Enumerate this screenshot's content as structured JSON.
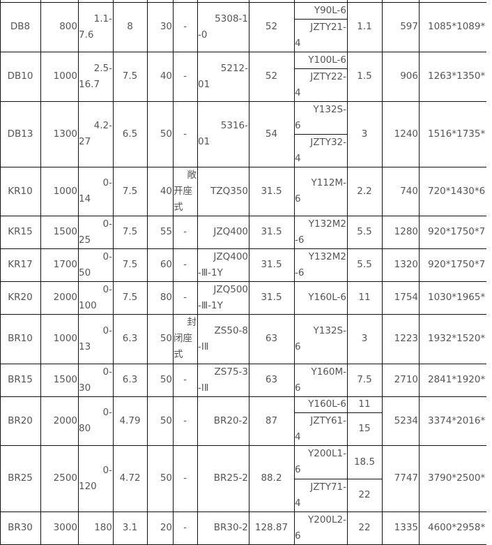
{
  "table": {
    "rows": [
      {
        "cells": [
          [
            "DB8"
          ],
          [
            "800"
          ],
          [
            "1.1-",
            "7.6"
          ],
          [
            "8"
          ],
          [
            "30"
          ],
          [
            "-"
          ],
          [
            "5308-1",
            "-0"
          ],
          [
            "52"
          ],
          {
            "split": [
              [
                "Y90L-6"
              ],
              [
                "JZTY21-",
                "4"
              ]
            ]
          },
          [
            "1.1"
          ],
          [
            "597"
          ],
          [
            "1085*1089*"
          ]
        ]
      },
      {
        "cells": [
          [
            "DB10"
          ],
          [
            "1000"
          ],
          [
            "2.5-",
            "16.7"
          ],
          [
            "7.5"
          ],
          [
            "40"
          ],
          [
            "-"
          ],
          [
            "5212-",
            "01"
          ],
          [
            "52"
          ],
          {
            "split": [
              [
                "Y100L-6"
              ],
              [
                "JZTY22-",
                "4"
              ]
            ]
          },
          [
            "1.5"
          ],
          [
            "906"
          ],
          [
            "1263*1350*"
          ]
        ]
      },
      {
        "cells": [
          [
            "DB13"
          ],
          [
            "1300"
          ],
          [
            "4.2-",
            "27"
          ],
          [
            "6.5"
          ],
          [
            "50"
          ],
          [
            "-"
          ],
          [
            "5316-",
            "01"
          ],
          [
            "54"
          ],
          {
            "split": [
              [
                "Y132S-",
                "6"
              ],
              [
                "JZTY32-",
                "4"
              ]
            ]
          },
          [
            "3"
          ],
          [
            "1240"
          ],
          [
            "1516*1735*"
          ]
        ]
      },
      {
        "cells": [
          [
            "KR10"
          ],
          [
            "1000"
          ],
          [
            "0-",
            "14"
          ],
          [
            "7.5"
          ],
          [
            "40"
          ],
          [
            "敞",
            "开座",
            "式"
          ],
          [
            "TZQ350"
          ],
          [
            "31.5"
          ],
          [
            "Y112M-",
            "6"
          ],
          [
            "2.2"
          ],
          [
            "740"
          ],
          [
            "720*1430*6"
          ]
        ]
      },
      {
        "cells": [
          [
            "KR15"
          ],
          [
            "1500"
          ],
          [
            "0-",
            "25"
          ],
          [
            "7.5"
          ],
          [
            "55"
          ],
          [
            "-"
          ],
          [
            "JZQ400"
          ],
          [
            "31.5"
          ],
          [
            "Y132M2",
            "-6"
          ],
          [
            "5.5"
          ],
          [
            "1280"
          ],
          [
            "920*1750*7"
          ]
        ]
      },
      {
        "cells": [
          [
            "KR17"
          ],
          [
            "1700"
          ],
          [
            "0-",
            "50"
          ],
          [
            "7.5"
          ],
          [
            "60"
          ],
          [
            "-"
          ],
          [
            "JZQ400",
            "-Ⅲ-1Y"
          ],
          [
            "31.5"
          ],
          [
            "Y132M2",
            "-6"
          ],
          [
            "5.5"
          ],
          [
            "1320"
          ],
          [
            "920*1750*7"
          ]
        ]
      },
      {
        "cells": [
          [
            "KR20"
          ],
          [
            "2000"
          ],
          [
            "0-",
            "100"
          ],
          [
            "7.5"
          ],
          [
            "80"
          ],
          [
            "-"
          ],
          [
            "JZQ500",
            "-Ⅲ-1Y"
          ],
          [
            "31.5"
          ],
          [
            "Y160L-6"
          ],
          [
            "11"
          ],
          [
            "1754"
          ],
          [
            "1030*1965*"
          ]
        ]
      },
      {
        "cells": [
          [
            "BR10"
          ],
          [
            "1000"
          ],
          [
            "0-",
            "13"
          ],
          [
            "6.3"
          ],
          [
            "50"
          ],
          [
            "封",
            "闭座",
            "式"
          ],
          [
            "ZS50-8",
            "-ⅠⅡ"
          ],
          [
            "63"
          ],
          [
            "Y132S-",
            "6"
          ],
          [
            "3"
          ],
          [
            "1223"
          ],
          [
            "1932*1520*"
          ]
        ]
      },
      {
        "cells": [
          [
            "BR15"
          ],
          [
            "1500"
          ],
          [
            "0-",
            "30"
          ],
          [
            "6.3"
          ],
          [
            "50"
          ],
          [
            "-"
          ],
          [
            "ZS75-3",
            "-ⅠⅡ"
          ],
          [
            "63"
          ],
          [
            "Y160M-",
            "6"
          ],
          [
            "7.5"
          ],
          [
            "2710"
          ],
          [
            "2841*1920*"
          ]
        ]
      },
      {
        "cells": [
          [
            "BR20"
          ],
          [
            "2000"
          ],
          [
            "0-",
            "80"
          ],
          [
            "4.79"
          ],
          [
            "50"
          ],
          [
            "-"
          ],
          [
            "BR20-2"
          ],
          [
            "87"
          ],
          {
            "split": [
              [
                "Y160L-6"
              ],
              [
                "JZTY61-",
                "4"
              ]
            ]
          },
          {
            "split": [
              [
                "11"
              ],
              [
                "15"
              ]
            ]
          },
          [
            "5234"
          ],
          [
            "3374*2016*"
          ]
        ]
      },
      {
        "cells": [
          [
            "BR25"
          ],
          [
            "2500"
          ],
          [
            "0-",
            "120"
          ],
          [
            "4.72"
          ],
          [
            "50"
          ],
          [
            "-"
          ],
          [
            "BR25-2"
          ],
          [
            "88.2"
          ],
          {
            "split": [
              [
                "Y200L1-",
                "6"
              ],
              [
                "JZTY71-",
                "4"
              ]
            ]
          },
          {
            "split": [
              [
                "18.5"
              ],
              [
                "22"
              ]
            ]
          },
          [
            "7747"
          ],
          [
            "3790*2500*"
          ]
        ]
      },
      {
        "cells": [
          [
            "BR30"
          ],
          [
            "3000"
          ],
          [
            "180"
          ],
          [
            "3.1"
          ],
          [
            "20"
          ],
          [
            "-"
          ],
          [
            "BR30-2"
          ],
          [
            "128.87"
          ],
          [
            "Y200L2-",
            "6"
          ],
          [
            "22"
          ],
          [
            "1335"
          ],
          [
            "4600*2958*"
          ]
        ]
      }
    ]
  }
}
